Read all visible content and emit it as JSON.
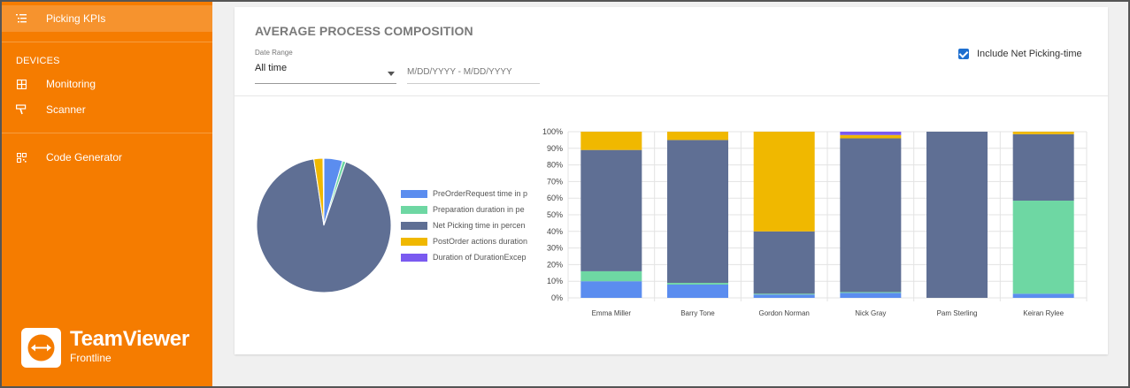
{
  "sidebar": {
    "top_item": {
      "label": "Picking KPIs",
      "icon": "list-icon"
    },
    "section_title": "DEVICES",
    "items": [
      {
        "label": "Monitoring",
        "icon": "grid-icon"
      },
      {
        "label": "Scanner",
        "icon": "scanner-icon"
      },
      {
        "label": "Code Generator",
        "icon": "qr-code-icon"
      }
    ],
    "logo": {
      "name": "TeamViewer",
      "sub": "Frontline"
    }
  },
  "main": {
    "title": "AVERAGE PROCESS COMPOSITION",
    "date_range": {
      "label": "Date Range",
      "value": "All time",
      "placeholder": "M/DD/YYYY - M/DD/YYYY"
    },
    "include_net_picking": {
      "label": "Include Net Picking-time",
      "checked": true
    }
  },
  "colors": {
    "accent": "#f57c00",
    "preorder": "#5b8def",
    "preparation": "#6ed7a3",
    "net_picking": "#5f6f94",
    "postorder": "#f0b800",
    "duration_exceptions": "#7a5af0"
  },
  "chart_data": [
    {
      "type": "pie",
      "legend_position": "right",
      "slices": [
        {
          "label": "PreOrderRequest time in p",
          "value": 4.5,
          "color": "#5b8def"
        },
        {
          "label": "Preparation duration in pe",
          "value": 0.8,
          "color": "#6ed7a3"
        },
        {
          "label": "Net Picking time in percen",
          "value": 92.3,
          "color": "#5f6f94"
        },
        {
          "label": "PostOrder actions duration",
          "value": 2.2,
          "color": "#f0b800"
        },
        {
          "label": "Duration of DurationExcep",
          "value": 0.2,
          "color": "#7a5af0"
        }
      ]
    },
    {
      "type": "bar",
      "stacked": true,
      "percent": true,
      "grid": true,
      "ylim": [
        0,
        100
      ],
      "y_ticks": [
        "0%",
        "10%",
        "20%",
        "30%",
        "40%",
        "50%",
        "60%",
        "70%",
        "80%",
        "90%",
        "100%"
      ],
      "categories": [
        "Emma Miller",
        "Barry Tone",
        "Gordon Norman",
        "Nick Gray",
        "Pam Sterling",
        "Keiran Rylee"
      ],
      "series": [
        {
          "name": "PreOrderRequest time in p",
          "color": "#5b8def",
          "values": [
            10,
            8,
            2,
            3,
            0,
            2.5
          ]
        },
        {
          "name": "Preparation duration in pe",
          "color": "#6ed7a3",
          "values": [
            6,
            1,
            0.5,
            0.5,
            0,
            56
          ]
        },
        {
          "name": "Net Picking time in percen",
          "color": "#5f6f94",
          "values": [
            73,
            86,
            37.5,
            92.5,
            100,
            40
          ]
        },
        {
          "name": "PostOrder actions duration",
          "color": "#f0b800",
          "values": [
            11,
            5,
            60,
            2,
            0,
            1.5
          ]
        },
        {
          "name": "Duration of DurationExcep",
          "color": "#7a5af0",
          "values": [
            0,
            0,
            0,
            2,
            0,
            0
          ]
        }
      ]
    }
  ]
}
